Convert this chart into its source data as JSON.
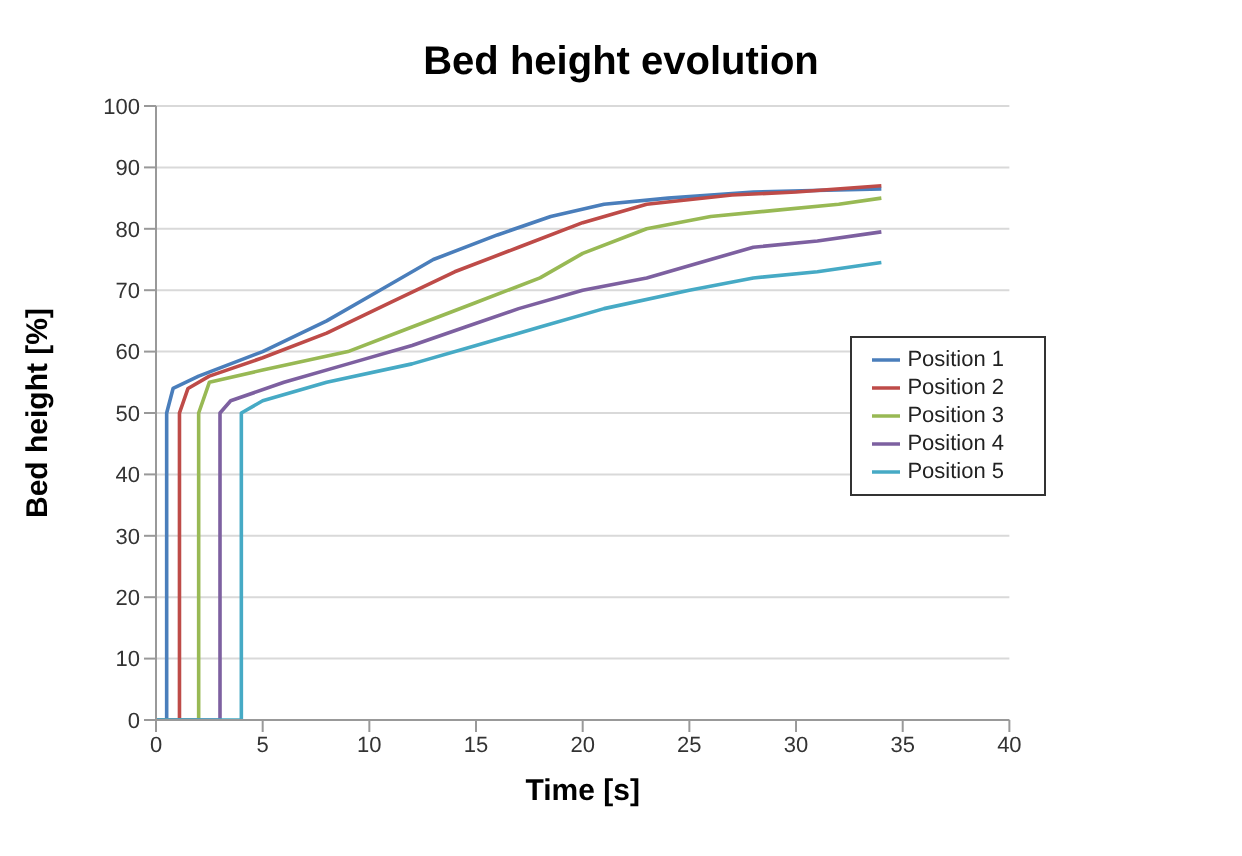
{
  "chart_data": {
    "type": "line",
    "title": "Bed height evolution",
    "xlabel": "Time [s]",
    "ylabel": "Bed height  [%]",
    "xlim": [
      0,
      40
    ],
    "xticks": [
      0,
      5,
      10,
      15,
      20,
      25,
      30,
      35,
      40
    ],
    "ylim": [
      0,
      100
    ],
    "yticks": [
      0,
      10,
      20,
      30,
      40,
      50,
      60,
      70,
      80,
      90,
      100
    ],
    "grid": "y",
    "legend": "right",
    "marker": "none",
    "line_style": "solid",
    "series": [
      {
        "name": "Position 1",
        "color": "#4a7ebb",
        "x": [
          0,
          0.5,
          0.5,
          0.8,
          2,
          5,
          8,
          10.5,
          13,
          16,
          18.5,
          21,
          24,
          28,
          34
        ],
        "values": [
          0,
          0,
          50,
          54,
          56,
          60,
          65,
          70,
          75,
          79,
          82,
          84,
          85,
          86,
          86.5
        ]
      },
      {
        "name": "Position 2",
        "color": "#be4b48",
        "x": [
          0,
          1.1,
          1.1,
          1.5,
          2.5,
          5,
          8,
          11,
          14,
          17,
          20,
          23,
          27,
          30,
          34
        ],
        "values": [
          0,
          0,
          50,
          54,
          56,
          59,
          63,
          68,
          73,
          77,
          81,
          84,
          85.5,
          86,
          87
        ]
      },
      {
        "name": "Position 3",
        "color": "#98b954",
        "x": [
          0,
          2,
          2,
          2.5,
          5,
          9,
          12,
          15,
          18,
          20,
          23,
          26,
          29,
          32,
          34
        ],
        "values": [
          0,
          0,
          50,
          55,
          57,
          60,
          64,
          68,
          72,
          76,
          80,
          82,
          83,
          84,
          85
        ]
      },
      {
        "name": "Position 4",
        "color": "#7d60a0",
        "x": [
          0,
          3,
          3,
          3.5,
          6,
          9,
          12,
          14.5,
          17,
          20,
          23,
          26,
          28,
          31,
          34
        ],
        "values": [
          0,
          0,
          50,
          52,
          55,
          58,
          61,
          64,
          67,
          70,
          72,
          75,
          77,
          78,
          79.5
        ]
      },
      {
        "name": "Position 5",
        "color": "#46aac5",
        "x": [
          0,
          4,
          4,
          5,
          8,
          12,
          15,
          18,
          21,
          25,
          28,
          31,
          34
        ],
        "values": [
          0,
          0,
          50,
          52,
          55,
          58,
          61,
          64,
          67,
          70,
          72,
          73,
          74.5
        ]
      }
    ]
  }
}
